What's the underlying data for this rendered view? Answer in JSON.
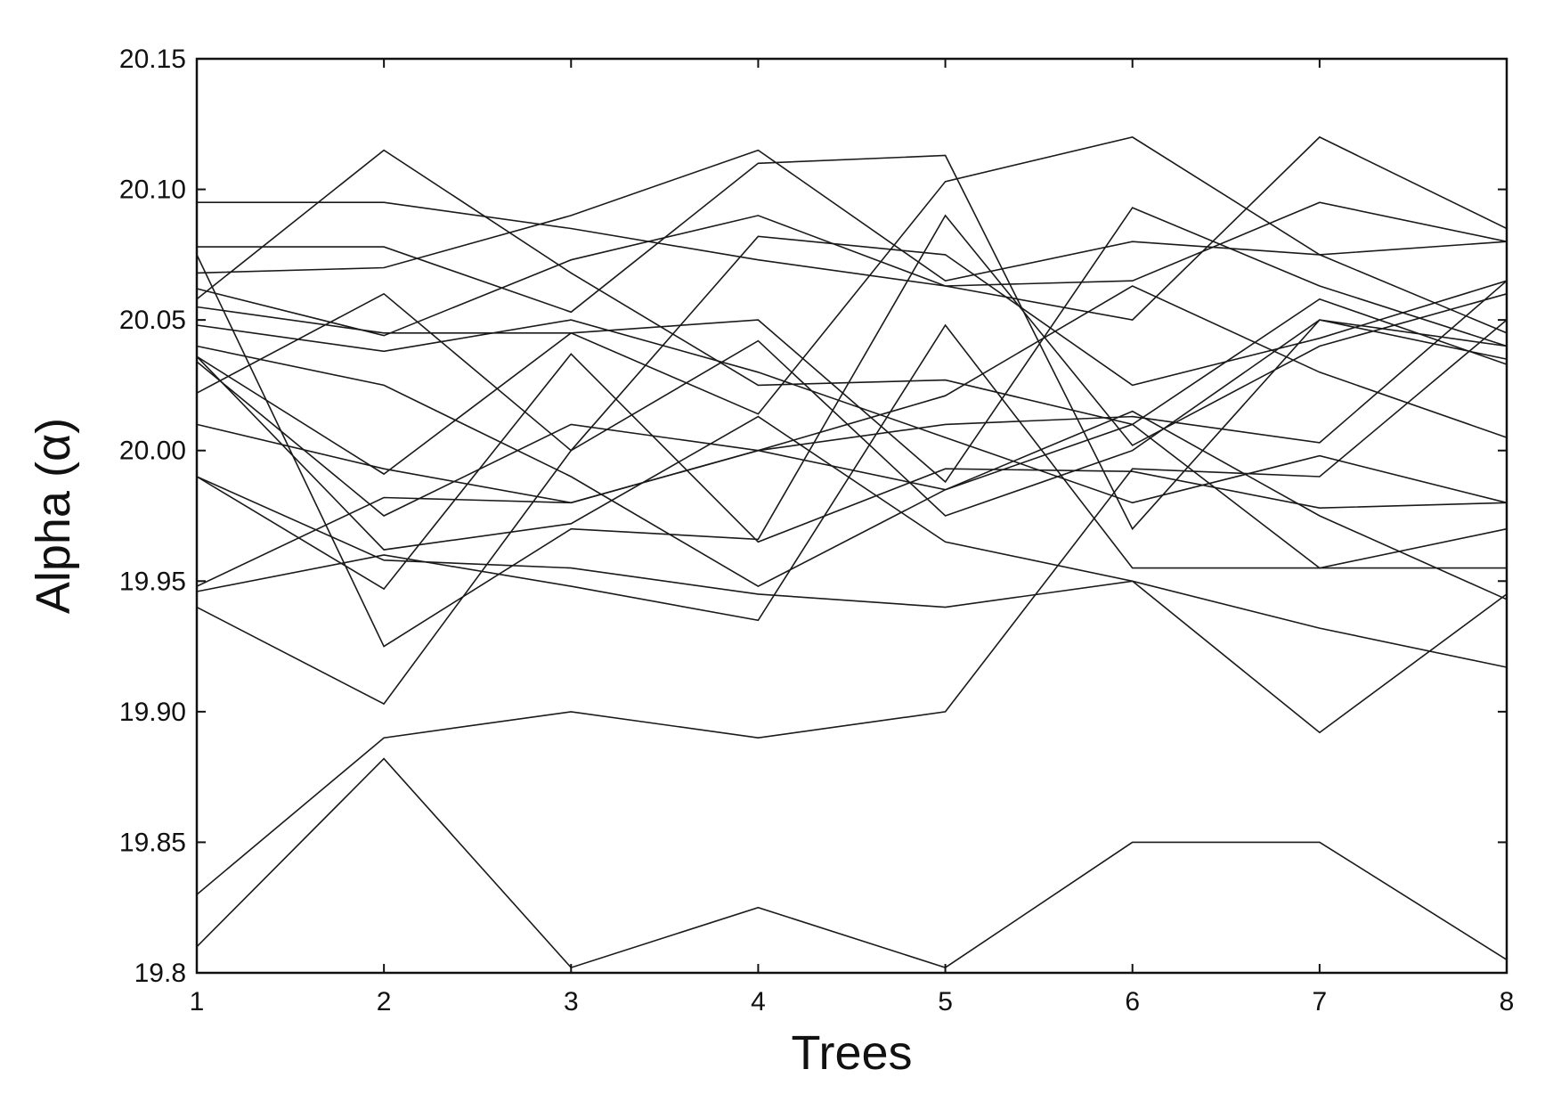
{
  "chart_data": {
    "type": "line",
    "title": "",
    "xlabel": "Trees",
    "ylabel": "Alpha (α)",
    "xlim": [
      1,
      8
    ],
    "ylim": [
      19.8,
      20.15
    ],
    "x": [
      1,
      2,
      3,
      4,
      5,
      6,
      7,
      8
    ],
    "x_tick_labels": [
      "1",
      "2",
      "3",
      "4",
      "5",
      "6",
      "7",
      "8"
    ],
    "y_ticks": [
      19.8,
      19.85,
      19.9,
      19.95,
      20.0,
      20.05,
      20.1,
      20.15
    ],
    "y_tick_labels": [
      "19.8",
      "19.85",
      "19.90",
      "19.95",
      "20.00",
      "20.05",
      "20.10",
      "20.15"
    ],
    "grid": false,
    "legend": "none",
    "line_color": "#1a1a1a",
    "series": [
      {
        "values": [
          20.095,
          20.095,
          20.085,
          20.073,
          20.063,
          20.065,
          20.095,
          20.08
        ]
      },
      {
        "values": [
          20.078,
          20.078,
          20.053,
          20.11,
          20.113,
          19.97,
          20.05,
          20.035
        ]
      },
      {
        "values": [
          20.068,
          20.07,
          20.09,
          20.115,
          20.065,
          20.08,
          20.075,
          20.08
        ]
      },
      {
        "values": [
          20.062,
          20.044,
          20.073,
          20.09,
          20.063,
          20.05,
          20.12,
          20.085
        ]
      },
      {
        "values": [
          20.058,
          20.115,
          20.068,
          20.025,
          20.027,
          20.01,
          20.058,
          20.033
        ]
      },
      {
        "values": [
          20.055,
          20.045,
          20.045,
          20.014,
          20.103,
          20.12,
          20.075,
          20.045
        ]
      },
      {
        "values": [
          20.048,
          20.038,
          20.05,
          20.03,
          20.005,
          19.98,
          19.998,
          19.98
        ]
      },
      {
        "values": [
          20.04,
          20.025,
          19.99,
          19.948,
          19.985,
          20.01,
          19.955,
          19.97
        ]
      },
      {
        "values": [
          20.036,
          19.991,
          20.045,
          20.05,
          19.988,
          20.093,
          20.063,
          20.04
        ]
      },
      {
        "values": [
          20.034,
          19.975,
          20.01,
          20.0,
          19.985,
          20.015,
          19.975,
          19.943
        ]
      },
      {
        "values": [
          20.022,
          20.06,
          20.0,
          20.082,
          20.075,
          20.025,
          20.043,
          20.065
        ]
      },
      {
        "values": [
          20.01,
          19.993,
          19.98,
          20.0,
          20.01,
          20.013,
          20.003,
          20.065
        ]
      },
      {
        "values": [
          19.99,
          19.958,
          19.955,
          19.945,
          19.94,
          19.95,
          19.932,
          19.917
        ]
      },
      {
        "values": [
          19.948,
          19.982,
          19.98,
          20.0,
          20.021,
          20.063,
          20.03,
          20.005
        ]
      },
      {
        "values": [
          19.946,
          19.96,
          19.948,
          19.935,
          20.048,
          19.955,
          19.955,
          19.955
        ]
      },
      {
        "values": [
          19.94,
          19.903,
          20.0,
          20.042,
          19.975,
          20.0,
          20.05,
          20.04
        ]
      },
      {
        "values": [
          20.075,
          19.925,
          19.97,
          19.966,
          20.09,
          20.002,
          20.04,
          20.06
        ]
      },
      {
        "values": [
          19.99,
          19.947,
          20.037,
          19.965,
          19.993,
          19.992,
          19.978,
          19.98
        ]
      },
      {
        "values": [
          20.036,
          19.962,
          19.972,
          20.013,
          19.965,
          19.95,
          19.892,
          19.945
        ]
      },
      {
        "values": [
          19.83,
          19.89,
          19.9,
          19.89,
          19.9,
          19.993,
          19.99,
          20.05
        ]
      },
      {
        "values": [
          19.81,
          19.882,
          19.802,
          19.825,
          19.802,
          19.85,
          19.85,
          19.805
        ]
      }
    ]
  }
}
